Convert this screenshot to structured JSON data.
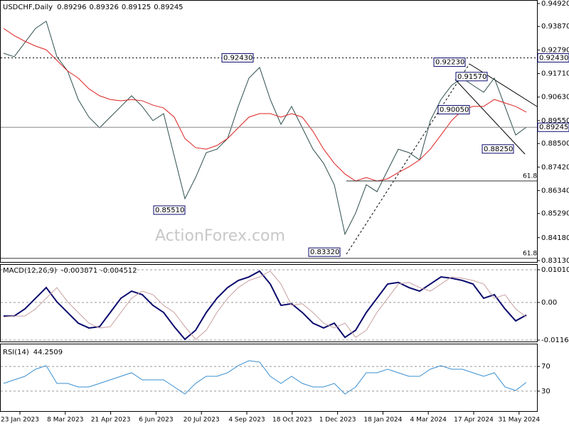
{
  "watermark": "ActionForex.com",
  "x_axis_labels": [
    "23 Jan 2023",
    "8 Mar 2023",
    "21 Apr 2023",
    "6 Jun 2023",
    "20 Jul 2023",
    "4 Sep 2023",
    "18 Oct 2023",
    "1 Dec 2023",
    "18 Jan 2024",
    "4 Mar 2024",
    "17 Apr 2024",
    "31 May 2024"
  ],
  "chart_data": [
    {
      "type": "line",
      "title": "USDCHF,Daily",
      "ohlc": {
        "open": 0.89296,
        "high": 0.89326,
        "low": 0.89125,
        "close": 0.89245
      },
      "ylim": [
        0.8313,
        0.9492
      ],
      "yticks": [
        {
          "value": 0.9492,
          "label": "0.94920"
        },
        {
          "value": 0.9387,
          "label": "0.93870"
        },
        {
          "value": 0.9279,
          "label": "0.92790"
        },
        {
          "value": 0.9171,
          "label": "0.91710"
        },
        {
          "value": 0.9063,
          "label": "0.90630"
        },
        {
          "value": 0.8955,
          "label": "0.89550"
        },
        {
          "value": 0.885,
          "label": "0.88500"
        },
        {
          "value": 0.8742,
          "label": "0.87420"
        },
        {
          "value": 0.8634,
          "label": "0.86340"
        },
        {
          "value": 0.8529,
          "label": "0.85290"
        },
        {
          "value": 0.8418,
          "label": "0.84180"
        },
        {
          "value": 0.8313,
          "label": "0.83130"
        }
      ],
      "series": [
        {
          "color": "#2f4f4f",
          "values": [
            0.9264,
            0.9248,
            0.9313,
            0.9378,
            0.9411,
            0.9248,
            0.9183,
            0.9052,
            0.8971,
            0.8922,
            0.8971,
            0.902,
            0.9069,
            0.902,
            0.8955,
            0.8987,
            0.8792,
            0.8597,
            0.8694,
            0.8808,
            0.8824,
            0.8873,
            0.902,
            0.915,
            0.9199,
            0.9052,
            0.8938,
            0.902,
            0.8922,
            0.8824,
            0.8759,
            0.8661,
            0.8434,
            0.8531,
            0.8661,
            0.8629,
            0.8727,
            0.8824,
            0.8808,
            0.8775,
            0.8955,
            0.9052,
            0.9117,
            0.915,
            0.9117,
            0.9085,
            0.915,
            0.902,
            0.8889,
            0.8925
          ]
        },
        {
          "color": "#dd2222",
          "values": [
            0.9378,
            0.9345,
            0.9319,
            0.9297,
            0.928,
            0.9231,
            0.9183,
            0.915,
            0.9101,
            0.9069,
            0.9052,
            0.9046,
            0.9052,
            0.9046,
            0.9026,
            0.9013,
            0.8971,
            0.8873,
            0.8831,
            0.8824,
            0.8841,
            0.8873,
            0.8922,
            0.8971,
            0.8987,
            0.8987,
            0.8971,
            0.8987,
            0.8971,
            0.8906,
            0.8824,
            0.8759,
            0.871,
            0.8678,
            0.8694,
            0.8678,
            0.8688,
            0.8717,
            0.8743,
            0.8775,
            0.8824,
            0.8889,
            0.8955,
            0.9003,
            0.902,
            0.902,
            0.9052,
            0.9036,
            0.902,
            0.8994
          ]
        }
      ],
      "annotations": [
        {
          "value": 0.9243,
          "label": "0.92430"
        },
        {
          "value": 0.8551,
          "label": "0.85510"
        },
        {
          "value": 0.8332,
          "label": "0.83320"
        },
        {
          "value": 0.9223,
          "label": "0.92230"
        },
        {
          "value": 0.9157,
          "label": "0.91570"
        },
        {
          "value": 0.9005,
          "label": "0.90050"
        },
        {
          "value": 0.8825,
          "label": "0.88250"
        }
      ],
      "fib_levels": [
        {
          "label": "61.8",
          "price": 0.8678
        },
        {
          "label": "61.8",
          "price": 0.8323
        }
      ]
    },
    {
      "type": "line",
      "title": "MACD(12,26,9)",
      "readout": [
        -0.003871,
        -0.004512
      ],
      "ylim": [
        -0.011645,
        0.010101
      ],
      "yticks": [
        0.010101,
        {
          "value": 0,
          "label": "0.00"
        },
        -0.011645
      ],
      "series": [
        {
          "color": "#0a0a6e",
          "values": [
            -0.0042,
            -0.0042,
            -0.002,
            0.0013,
            0.0046,
            0.0002,
            -0.0031,
            -0.0064,
            -0.0079,
            -0.0075,
            -0.0031,
            0.0013,
            0.0035,
            0.0024,
            -0.0009,
            -0.0031,
            -0.0075,
            -0.0114,
            -0.0086,
            -0.0031,
            0.0013,
            0.0046,
            0.0068,
            0.0079,
            0.0097,
            0.0057,
            -0.0009,
            -0.0004,
            -0.0031,
            -0.0064,
            -0.0079,
            -0.0064,
            -0.0108,
            -0.0086,
            -0.0031,
            0.0013,
            0.0057,
            0.0062,
            0.0046,
            0.0035,
            0.0057,
            0.0079,
            0.0075,
            0.0068,
            0.0057,
            0.0013,
            0.0024,
            -0.002,
            -0.0057,
            -0.0039
          ]
        },
        {
          "color": "#c9a0a0",
          "values": [
            -0.0045,
            -0.0042,
            -0.0042,
            -0.002,
            0.0013,
            0.0046,
            0.0002,
            -0.0031,
            -0.0064,
            -0.0079,
            -0.0075,
            -0.0031,
            0.0013,
            0.0035,
            0.0024,
            -0.0009,
            -0.0031,
            -0.0075,
            -0.0114,
            -0.0086,
            -0.0031,
            0.0013,
            0.0046,
            0.0068,
            0.0079,
            0.0097,
            0.0057,
            -0.0009,
            -0.0004,
            -0.0031,
            -0.0064,
            -0.0079,
            -0.0064,
            -0.0108,
            -0.0086,
            -0.0031,
            0.0013,
            0.0057,
            0.0062,
            0.0046,
            0.0035,
            0.0057,
            0.0079,
            0.0075,
            0.0068,
            0.0057,
            0.0013,
            0.0024,
            -0.002,
            -0.0045
          ]
        }
      ]
    },
    {
      "type": "line",
      "title": "RSI(14)",
      "readout": [
        44.2509
      ],
      "ylim": [
        0,
        100
      ],
      "yticks": [
        70,
        30
      ],
      "series": [
        {
          "color": "#3a8fd0",
          "values": [
            42.5,
            48.3,
            54.0,
            65.5,
            71.3,
            42.5,
            42.5,
            36.8,
            36.8,
            42.5,
            48.3,
            54.0,
            59.8,
            48.3,
            48.3,
            48.3,
            36.8,
            25.3,
            42.5,
            54.0,
            54.0,
            59.8,
            71.3,
            79.3,
            77.0,
            54.0,
            42.5,
            54.0,
            42.5,
            36.8,
            36.8,
            42.5,
            25.3,
            36.8,
            59.8,
            59.8,
            65.5,
            59.8,
            54.0,
            54.0,
            65.5,
            71.3,
            65.5,
            65.5,
            59.8,
            54.0,
            59.8,
            36.8,
            31.0,
            44.3
          ]
        }
      ]
    }
  ]
}
